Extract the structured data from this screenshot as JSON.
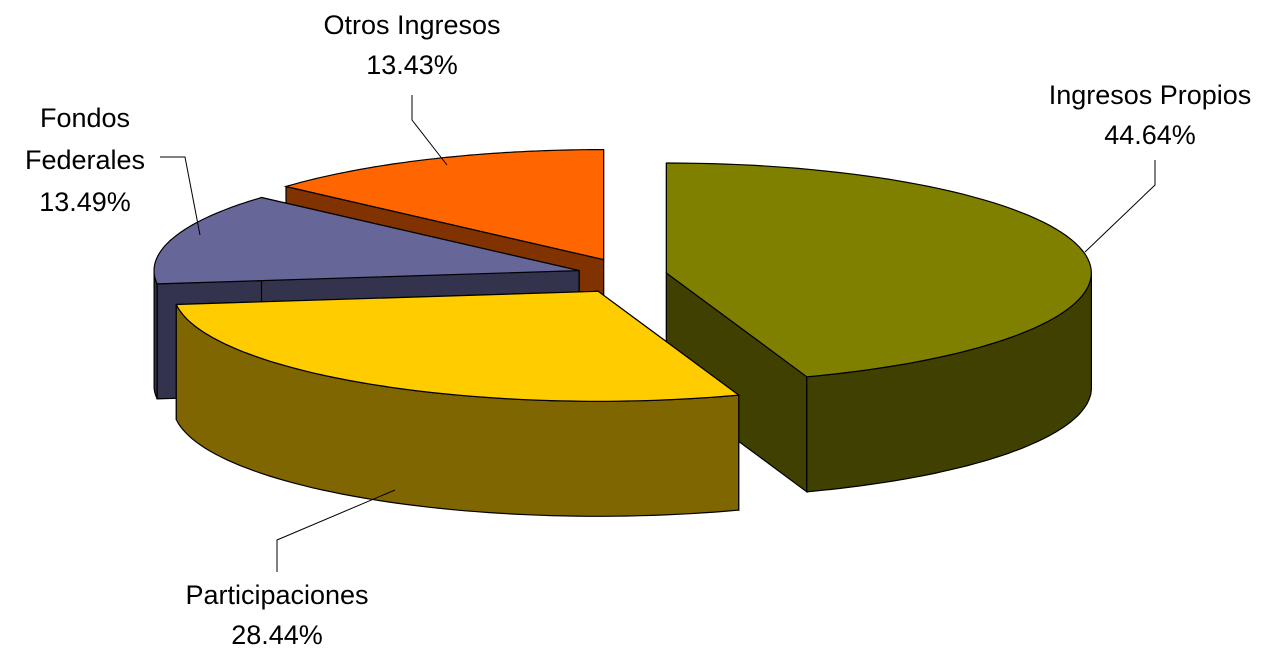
{
  "chart_data": {
    "type": "pie3d",
    "categories": [
      "Ingresos Propios",
      "Participaciones",
      "Fondos Federales",
      "Otros Ingresos"
    ],
    "values": [
      44.64,
      28.44,
      13.49,
      13.43
    ],
    "value_labels": [
      "44.64%",
      "28.44%",
      "13.49%",
      "13.43%"
    ],
    "colors": [
      "#808000",
      "#ffcc00",
      "#666699",
      "#ff6600"
    ]
  }
}
